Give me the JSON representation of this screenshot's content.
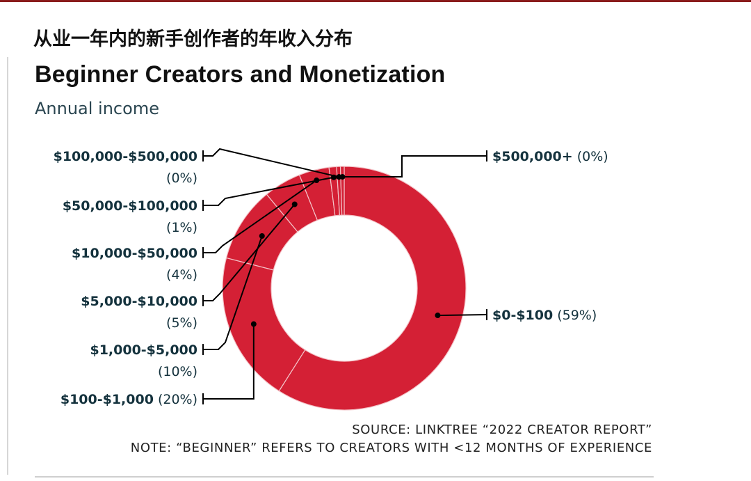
{
  "header": {
    "title_cn": "从业一年内的新手创作者的年收入分布",
    "title_en": "Beginner Creators and Monetization",
    "subtitle": "Annual income"
  },
  "footer": {
    "source": "SOURCE: LINKTREE “2022 CREATOR REPORT”",
    "note": "NOTE: “BEGINNER” REFERS TO CREATORS WITH <12 MONTHS OF EXPERIENCE"
  },
  "colors": {
    "slice": "#d42035",
    "separator": "#f3c3c8",
    "leader": "#000000",
    "label": "#14323d"
  },
  "chart_data": {
    "type": "pie",
    "variant": "donut",
    "title": "Beginner Creators and Monetization",
    "subtitle": "Annual income",
    "categories": [
      "$0-$100",
      "$100-$1,000",
      "$1,000-$5,000",
      "$5,000-$10,000",
      "$10,000-$50,000",
      "$50,000-$100,000",
      "$100,000-$500,000",
      "$500,000+"
    ],
    "values": [
      59,
      20,
      10,
      5,
      4,
      1,
      0,
      0
    ],
    "labels": [
      {
        "name": "$0-$100",
        "pct": "(59%)"
      },
      {
        "name": "$100-$1,000",
        "pct": "(20%)"
      },
      {
        "name": "$1,000-$5,000",
        "pct": "(10%)"
      },
      {
        "name": "$5,000-$10,000",
        "pct": "(5%)"
      },
      {
        "name": "$10,000-$50,000",
        "pct": "(4%)"
      },
      {
        "name": "$50,000-$100,000",
        "pct": "(1%)"
      },
      {
        "name": "$100,000-$500,000",
        "pct": "(0%)"
      },
      {
        "name": "$500,000+",
        "pct": "(0%)"
      }
    ],
    "legend": "none"
  }
}
